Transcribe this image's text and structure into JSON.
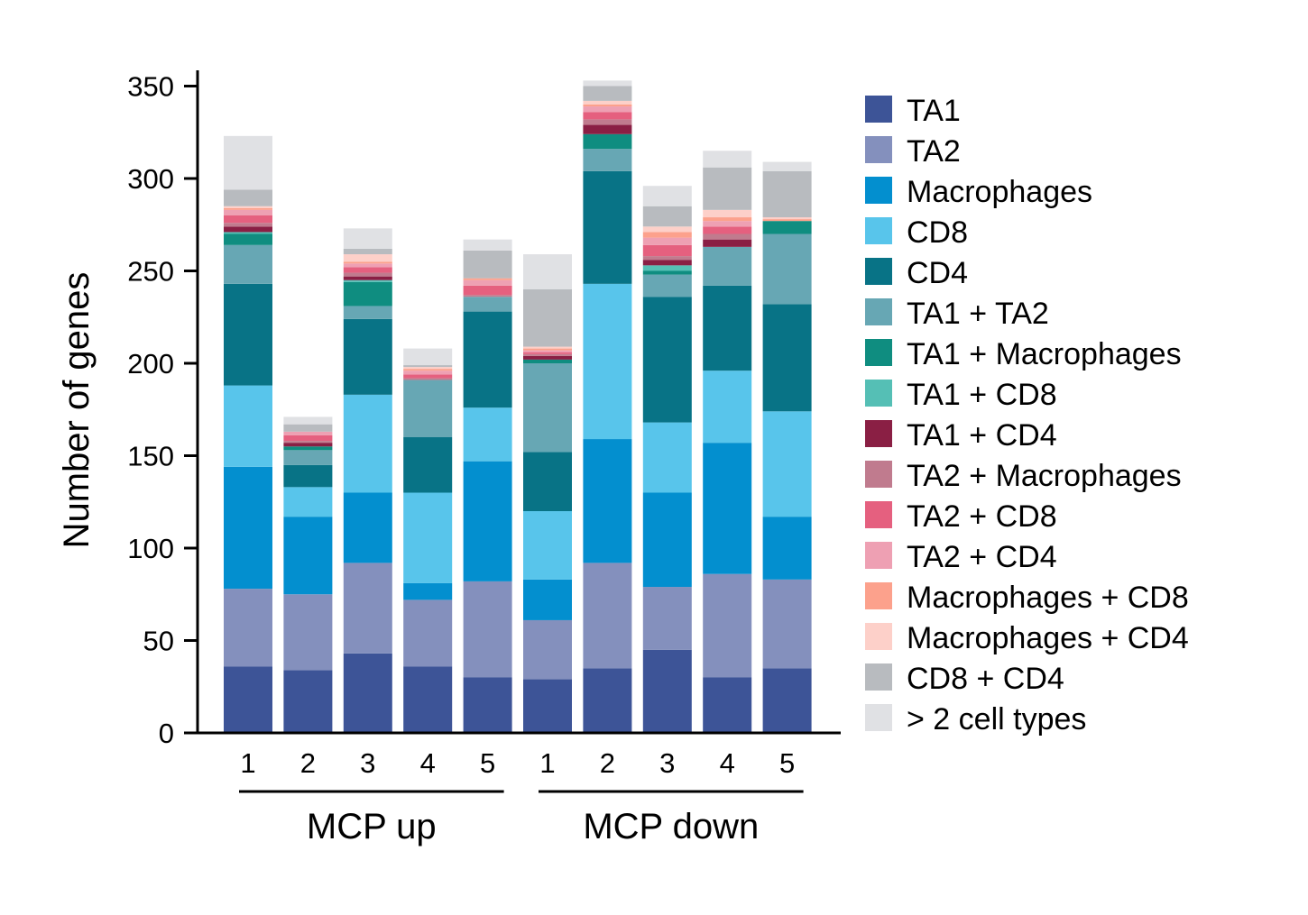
{
  "chart_data": {
    "type": "bar",
    "stacked": true,
    "ylabel": "Number of genes",
    "ylim": [
      0,
      360
    ],
    "yticks": [
      0,
      50,
      100,
      150,
      200,
      250,
      300,
      350
    ],
    "ytick_labels": [
      "0",
      "50",
      "100",
      "150",
      "200",
      "250",
      "300",
      "350"
    ],
    "grid": false,
    "legend_position": "right",
    "categories": [
      "1",
      "2",
      "3",
      "4",
      "5",
      "1",
      "2",
      "3",
      "4",
      "5"
    ],
    "groups": [
      {
        "label": "MCP up",
        "start": 0,
        "end": 4
      },
      {
        "label": "MCP down",
        "start": 5,
        "end": 9
      }
    ],
    "series": [
      {
        "name": "TA1",
        "color": "#3d5497",
        "values": [
          36,
          34,
          43,
          36,
          30,
          29,
          35,
          45,
          30,
          35
        ]
      },
      {
        "name": "TA2",
        "color": "#8490bd",
        "values": [
          42,
          41,
          49,
          36,
          52,
          32,
          57,
          34,
          56,
          48
        ]
      },
      {
        "name": "Macrophages",
        "color": "#038fcf",
        "values": [
          66,
          42,
          38,
          9,
          65,
          22,
          67,
          51,
          71,
          34
        ]
      },
      {
        "name": "CD8",
        "color": "#58c5eb",
        "values": [
          44,
          16,
          53,
          49,
          29,
          37,
          84,
          38,
          39,
          57
        ]
      },
      {
        "name": "CD4",
        "color": "#087386",
        "values": [
          55,
          12,
          41,
          30,
          52,
          32,
          61,
          68,
          46,
          58
        ]
      },
      {
        "name": "TA1 + TA2",
        "color": "#67a7b4",
        "values": [
          21,
          8,
          7,
          31,
          8,
          48,
          12,
          12,
          21,
          38
        ]
      },
      {
        "name": "TA1 + Macrophages",
        "color": "#0f8d80",
        "values": [
          6,
          2,
          13,
          0,
          0,
          2,
          8,
          2,
          0,
          7
        ]
      },
      {
        "name": "TA1 + CD8",
        "color": "#55bfb5",
        "values": [
          1,
          0,
          1,
          0,
          0,
          0,
          0,
          3,
          0,
          0
        ]
      },
      {
        "name": "TA1 + CD4",
        "color": "#8a1f44",
        "values": [
          3,
          2,
          2,
          0,
          0,
          2,
          5,
          3,
          4,
          0
        ]
      },
      {
        "name": "TA2 + Macrophages",
        "color": "#c07b8e",
        "values": [
          2,
          1,
          2,
          1,
          1,
          1,
          3,
          2,
          3,
          0
        ]
      },
      {
        "name": "TA2 + CD8",
        "color": "#e5607f",
        "values": [
          4,
          3,
          3,
          2,
          5,
          1,
          4,
          6,
          4,
          0
        ]
      },
      {
        "name": "TA2 + CD4",
        "color": "#eea0b3",
        "values": [
          3,
          2,
          2,
          2,
          3,
          1,
          3,
          4,
          3,
          0
        ]
      },
      {
        "name": "Macrophages + CD8",
        "color": "#fca18c",
        "values": [
          1,
          0,
          1,
          1,
          1,
          1,
          1,
          3,
          2,
          1
        ]
      },
      {
        "name": "Macrophages + CD4",
        "color": "#fdd0c9",
        "values": [
          1,
          0,
          4,
          1,
          0,
          1,
          2,
          3,
          4,
          1
        ]
      },
      {
        "name": "CD8 + CD4",
        "color": "#b8bbbf",
        "values": [
          9,
          4,
          3,
          1,
          15,
          31,
          8,
          11,
          23,
          25
        ]
      },
      {
        "name": "> 2 cell types",
        "color": "#e0e1e4",
        "values": [
          29,
          4,
          11,
          9,
          6,
          19,
          3,
          11,
          9,
          5
        ]
      }
    ]
  }
}
